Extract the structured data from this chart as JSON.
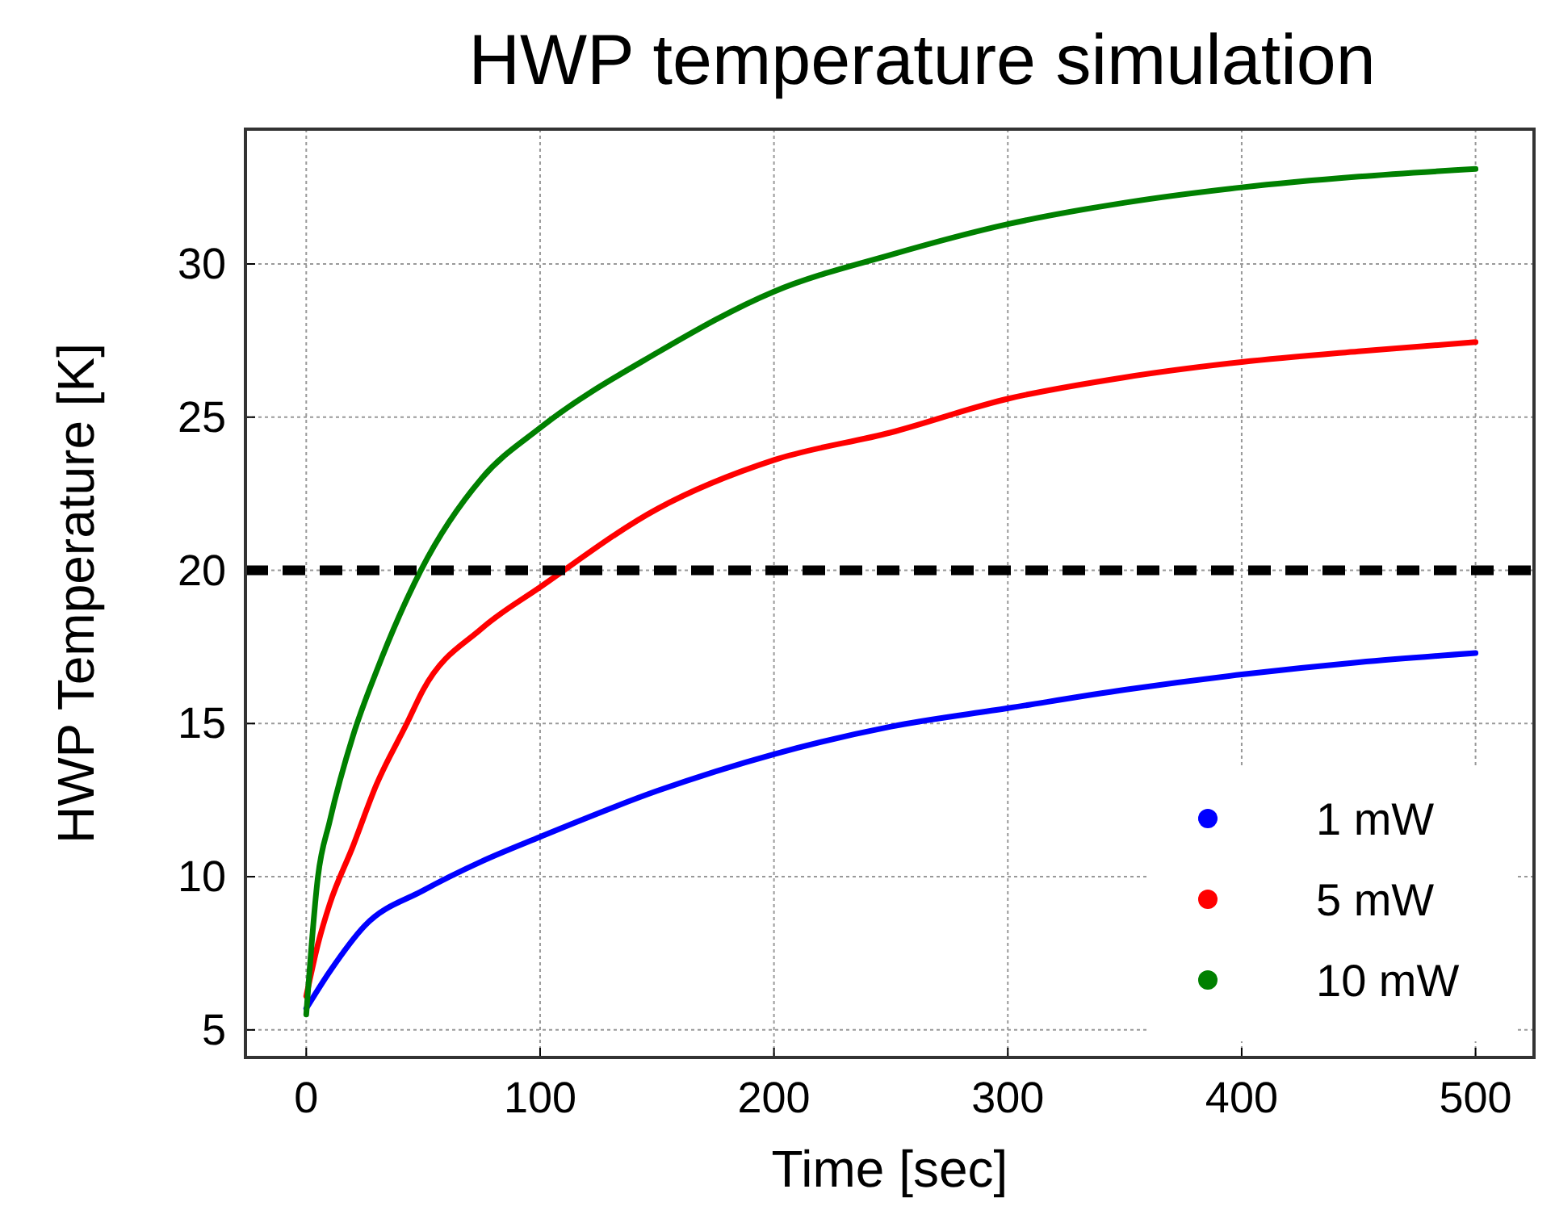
{
  "chart_data": {
    "type": "line",
    "title": "HWP temperature simulation",
    "xlabel": "Time [sec]",
    "ylabel": "HWP Temperature [K]",
    "xlim": [
      -26,
      525
    ],
    "ylim": [
      4.1,
      34.4
    ],
    "xticks": [
      0,
      100,
      200,
      300,
      400,
      500
    ],
    "yticks": [
      5,
      10,
      15,
      20,
      25,
      30
    ],
    "grid": true,
    "legend": "bottom right",
    "ref_lines": [
      {
        "axis": "y",
        "value": 20,
        "color": "#000000",
        "line_style": "dashed"
      }
    ],
    "series": [
      {
        "name": "1 mW",
        "color": "#0000ff",
        "x": [
          0,
          10,
          25,
          50,
          75,
          100,
          150,
          200,
          250,
          300,
          350,
          400,
          450,
          500
        ],
        "values": [
          5.7,
          6.9,
          8.4,
          9.55,
          10.5,
          11.3,
          12.8,
          14.0,
          14.9,
          15.5,
          16.1,
          16.6,
          17.0,
          17.3
        ]
      },
      {
        "name": "5 mW",
        "color": "#ff0000",
        "x": [
          0,
          5,
          10,
          20,
          30,
          43,
          50,
          75,
          100,
          150,
          200,
          250,
          300,
          350,
          400,
          450,
          500
        ],
        "values": [
          6.1,
          7.8,
          9.1,
          11.0,
          13.0,
          15.0,
          16.1,
          18.1,
          19.45,
          22.0,
          23.6,
          24.5,
          25.6,
          26.3,
          26.8,
          27.15,
          27.45
        ]
      },
      {
        "name": "10 mW",
        "color": "#008000",
        "x": [
          0,
          5,
          10,
          20,
          30,
          49,
          75,
          100,
          150,
          200,
          250,
          300,
          350,
          400,
          450,
          500
        ],
        "values": [
          5.5,
          10.0,
          11.8,
          14.6,
          16.7,
          20.0,
          23.0,
          24.65,
          27.1,
          29.1,
          30.3,
          31.3,
          32.0,
          32.5,
          32.85,
          33.1
        ]
      }
    ]
  }
}
